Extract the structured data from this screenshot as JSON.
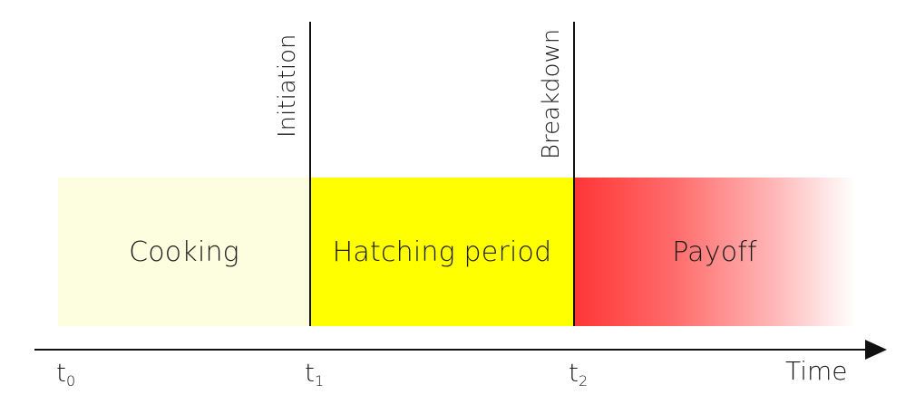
{
  "phases": {
    "cooking": "Cooking",
    "hatching": "Hatching period",
    "payoff": "Payoff"
  },
  "events": {
    "initiation": "Initiation",
    "breakdown": "Breakdown"
  },
  "axis": {
    "title": "Time",
    "ticks": [
      {
        "base": "t",
        "sub": "0"
      },
      {
        "base": "t",
        "sub": "1"
      },
      {
        "base": "t",
        "sub": "2"
      }
    ]
  },
  "colors": {
    "cooking": "#fdfde0",
    "hatching": "#ffff00",
    "payoff_start": "#ff3535",
    "payoff_end": "#ffffff",
    "line": "#111111"
  }
}
